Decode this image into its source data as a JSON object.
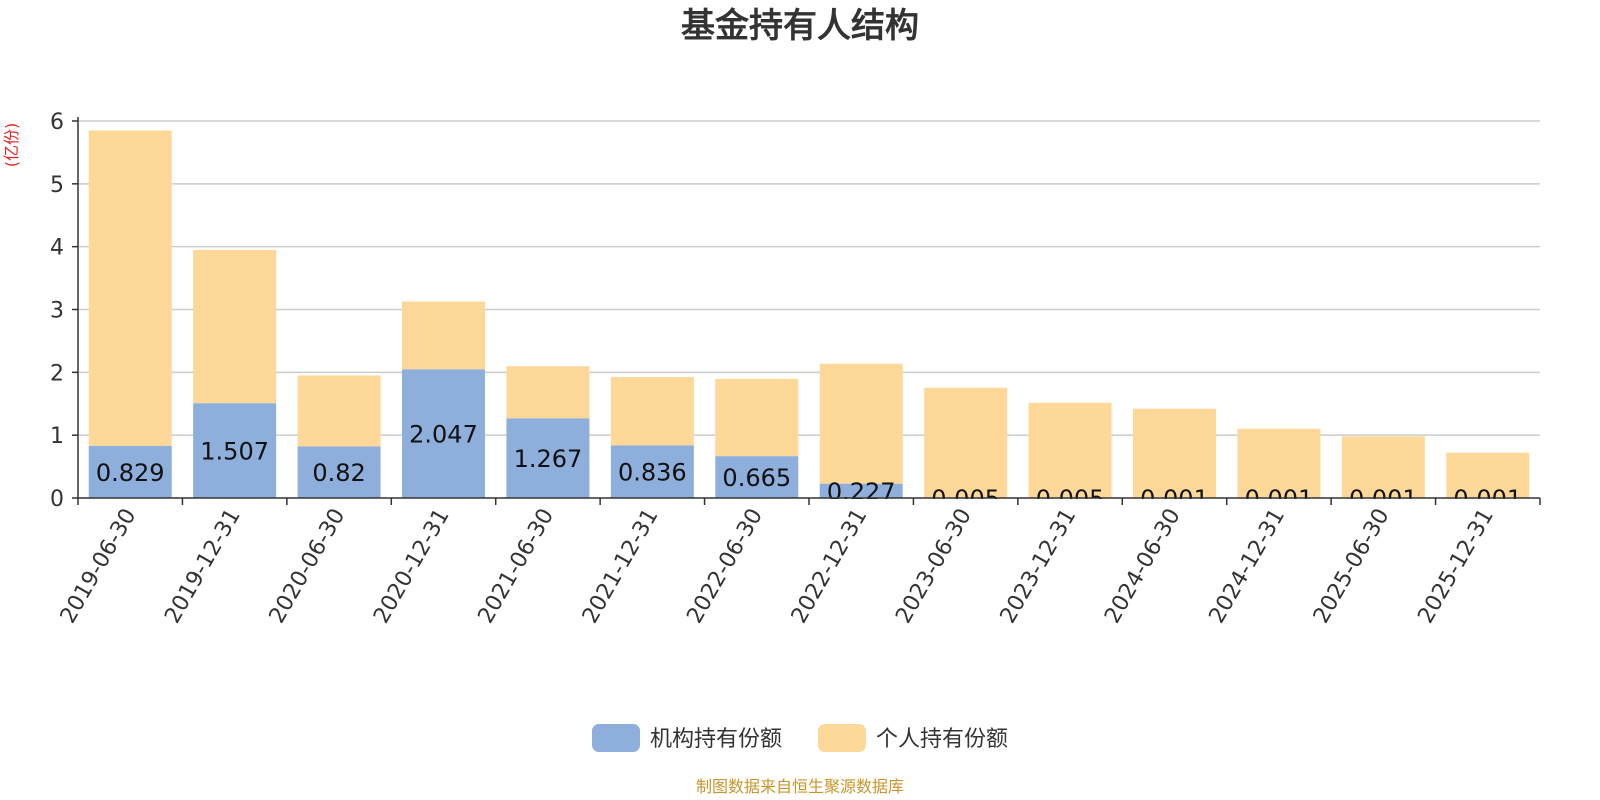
{
  "chart_data": {
    "type": "bar",
    "stacked": true,
    "title": "基金持有人结构",
    "xlabel": "",
    "ylabel": "(亿份)",
    "ylim": [
      0,
      6
    ],
    "yticks": [
      0,
      1,
      2,
      3,
      4,
      5,
      6
    ],
    "grid": true,
    "legend_position": "bottom",
    "categories": [
      "2019-06-30",
      "2019-12-31",
      "2020-06-30",
      "2020-12-31",
      "2021-06-30",
      "2021-12-31",
      "2022-06-30",
      "2022-12-31",
      "2023-06-30",
      "2023-12-31",
      "2024-06-30",
      "2024-12-31",
      "2025-06-30",
      "2025-12-31"
    ],
    "series": [
      {
        "name": "机构持有份额",
        "color": "#8eaedc",
        "values": [
          0.829,
          1.507,
          0.82,
          2.047,
          1.267,
          0.836,
          0.665,
          0.227,
          0.005,
          0.005,
          0.001,
          0.001,
          0.001,
          0.001
        ],
        "labels": [
          "0.829",
          "1.507",
          "0.82",
          "2.047",
          "1.267",
          "0.836",
          "0.665",
          "0.227",
          "0.005",
          "0.005",
          "0.001",
          "0.001",
          "0.001",
          "0.001"
        ]
      },
      {
        "name": "个人持有份额",
        "color": "#fdd899",
        "values": [
          5.02,
          2.44,
          1.13,
          1.08,
          0.83,
          1.09,
          1.23,
          1.91,
          1.75,
          1.51,
          1.42,
          1.1,
          0.98,
          0.72
        ]
      }
    ],
    "source": "制图数据来自恒生聚源数据库"
  },
  "colors": {
    "title": "#333333",
    "ylabel": "#e8251f",
    "axis": "#333333",
    "grid": "#cccccc",
    "source": "#c8962a"
  }
}
